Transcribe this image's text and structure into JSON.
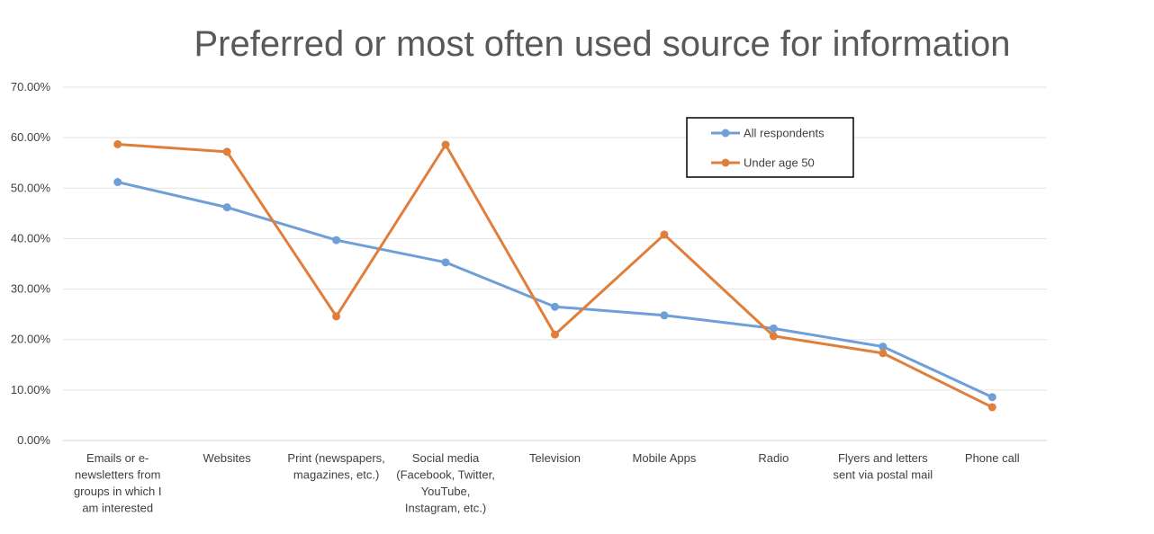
{
  "chart_data": {
    "type": "line",
    "title": "Preferred or most often used source for information",
    "xlabel": "",
    "ylabel": "",
    "ylim": [
      0,
      0.7
    ],
    "y_ticks": [
      "0.00%",
      "10.00%",
      "20.00%",
      "30.00%",
      "40.00%",
      "50.00%",
      "60.00%",
      "70.00%"
    ],
    "categories": [
      [
        "Emails or e-",
        "newsletters from",
        "groups in which I",
        "am interested"
      ],
      [
        "Websites"
      ],
      [
        "Print (newspapers,",
        "magazines, etc.)"
      ],
      [
        "Social media",
        "(Facebook, Twitter,",
        "YouTube,",
        "Instagram, etc.)"
      ],
      [
        "Television"
      ],
      [
        "Mobile Apps"
      ],
      [
        "Radio"
      ],
      [
        "Flyers and letters",
        "sent via postal mail"
      ],
      [
        "Phone call"
      ]
    ],
    "series": [
      {
        "name": "All respondents",
        "color": "#6f9fd8",
        "values": [
          0.512,
          0.462,
          0.397,
          0.353,
          0.265,
          0.248,
          0.222,
          0.186,
          0.086
        ]
      },
      {
        "name": "Under age 50",
        "color": "#e07f3c",
        "values": [
          0.587,
          0.572,
          0.246,
          0.586,
          0.21,
          0.408,
          0.207,
          0.173,
          0.066
        ]
      }
    ],
    "grid": true,
    "legend_position": "top-right"
  }
}
